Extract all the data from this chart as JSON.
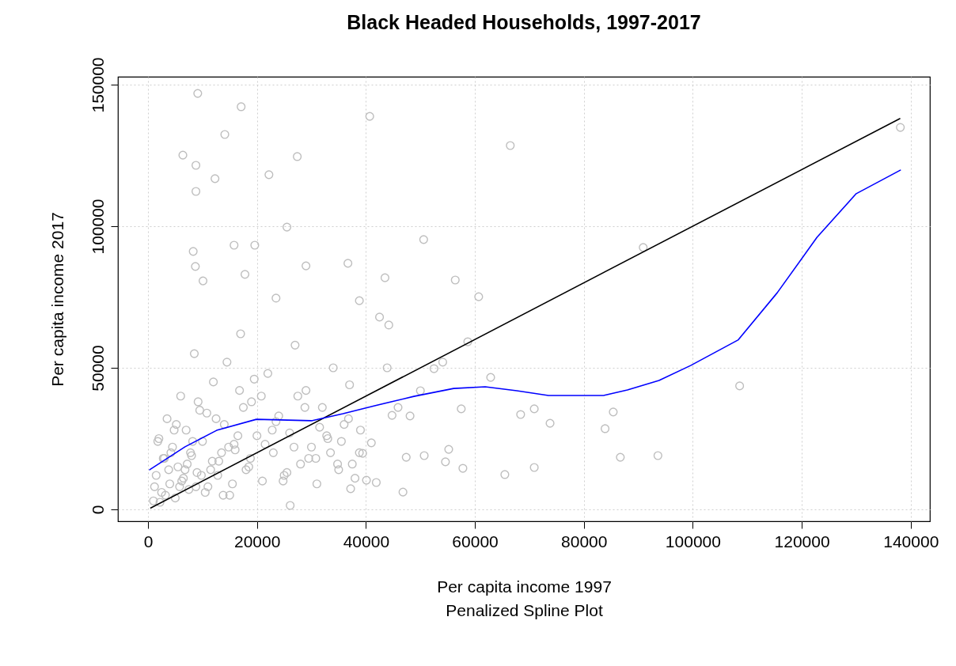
{
  "chart_data": {
    "type": "scatter",
    "title": "Black Headed Households, 1997-2017",
    "xlabel": "Per capita income 1997",
    "ylabel": "Per capita income 2017",
    "annotations": [
      "Penalized Spline Plot"
    ],
    "xlim": [
      -5520,
      143520
    ],
    "ylim": [
      -4200,
      152800
    ],
    "xticks": [
      0,
      20000,
      40000,
      60000,
      80000,
      100000,
      120000,
      140000
    ],
    "yticks": [
      0,
      50000,
      100000,
      150000
    ],
    "grid": true,
    "series": [
      {
        "color": "#bebebe",
        "marker": "circle",
        "x": [
          9130,
          17100,
          40700,
          66500,
          138100,
          6400,
          14100,
          27400,
          8800,
          12300,
          22200,
          8800,
          25500,
          50600,
          90900,
          8300,
          15800,
          19600,
          29000,
          36700,
          8700,
          17800,
          43500,
          56400,
          60700,
          10100,
          38800,
          23500,
          44200,
          42500,
          58700,
          62900,
          108600,
          57500,
          68400,
          70900,
          73800,
          85400,
          83900,
          86700,
          93600,
          70900,
          65500,
          57800,
          50700,
          47400,
          46800,
          54600,
          55200,
          54100,
          52500,
          45900,
          48100,
          50000,
          43900,
          44800,
          41000,
          40100,
          37200,
          26100,
          39400,
          41900,
          1000,
          1500,
          2000,
          2500,
          3000,
          3500,
          4000,
          4500,
          5000,
          5500,
          6000,
          6500,
          7000,
          7500,
          8000,
          8500,
          9000,
          9500,
          10000,
          11000,
          12000,
          13000,
          14000,
          15000,
          16000,
          17000,
          18000,
          19000,
          20000,
          21000,
          22000,
          23000,
          24000,
          25000,
          26000,
          27000,
          28000,
          29000,
          30000,
          31000,
          32000,
          33000,
          34000,
          35000,
          36000,
          37000,
          38000,
          39000,
          1200,
          2200,
          3200,
          4200,
          5200,
          6200,
          7200,
          8200,
          9200,
          10500,
          11500,
          12500,
          13500,
          14500,
          15500,
          16500,
          17500,
          18500,
          19500,
          21500,
          23500,
          25500,
          27500,
          29500,
          31500,
          33500,
          35500,
          37500,
          2800,
          4800,
          6800,
          8800,
          10800,
          12800,
          14800,
          16800,
          18800,
          20800,
          22800,
          24800,
          26800,
          28800,
          30800,
          32800,
          34800,
          36800,
          38800,
          1800,
          3800,
          5800,
          7800,
          9800,
          11800,
          13800,
          15800
        ],
        "values": [
          146900,
          142200,
          138800,
          128500,
          134900,
          125100,
          132400,
          124600,
          121500,
          116800,
          118200,
          112300,
          99700,
          95300,
          92500,
          91100,
          93300,
          93300,
          86000,
          86900,
          85800,
          83000,
          81800,
          81000,
          75100,
          80700,
          73700,
          74600,
          65100,
          67900,
          59200,
          46600,
          43600,
          35500,
          33500,
          35500,
          30400,
          34400,
          28500,
          18400,
          19000,
          14800,
          12300,
          14500,
          19000,
          18400,
          6100,
          16800,
          21200,
          52000,
          49700,
          36000,
          33000,
          41900,
          50000,
          33200,
          23500,
          10300,
          7300,
          1400,
          19800,
          9500,
          3000,
          12000,
          25000,
          6000,
          18000,
          32000,
          9000,
          22000,
          4000,
          15000,
          40000,
          11000,
          28000,
          7000,
          19000,
          55000,
          13000,
          35000,
          24000,
          8000,
          45000,
          17000,
          30000,
          5000,
          21000,
          62000,
          14000,
          38000,
          26000,
          10000,
          48000,
          20000,
          33000,
          12000,
          27000,
          58000,
          16000,
          42000,
          22000,
          9000,
          36000,
          25000,
          50000,
          14000,
          30000,
          44000,
          11000,
          28000,
          8000,
          2500,
          5000,
          20000,
          30000,
          10000,
          16000,
          24000,
          38000,
          6000,
          14000,
          32000,
          20000,
          52000,
          9000,
          26000,
          36000,
          15000,
          46000,
          23000,
          31000,
          13000,
          40000,
          18000,
          29000,
          20000,
          24000,
          16000,
          18000,
          28000,
          14000,
          8000,
          34000,
          12000,
          22000,
          42000,
          18000,
          40000,
          28000,
          10000,
          22000,
          36000,
          18000,
          26000,
          16000,
          32000,
          20000,
          24000,
          14000,
          8000,
          20000,
          12000,
          17000,
          5000,
          23000
        ]
      },
      {
        "type": "line",
        "marker": "none",
        "color": "#000000",
        "x": [
          500,
          138000
        ],
        "values": [
          500,
          138000
        ]
      },
      {
        "type": "line",
        "marker": "none",
        "color": "#0000ff",
        "x": [
          300,
          6800,
          12600,
          19900,
          30000,
          35800,
          41600,
          48800,
          56100,
          61900,
          67700,
          73500,
          83600,
          88000,
          93800,
          99600,
          108300,
          115500,
          122800,
          130000,
          138100
        ],
        "values": [
          14000,
          22100,
          27900,
          31800,
          31300,
          33800,
          36600,
          39900,
          42700,
          43300,
          41900,
          40200,
          40200,
          42200,
          45500,
          50800,
          59800,
          76500,
          96100,
          111500,
          119800
        ]
      }
    ]
  }
}
